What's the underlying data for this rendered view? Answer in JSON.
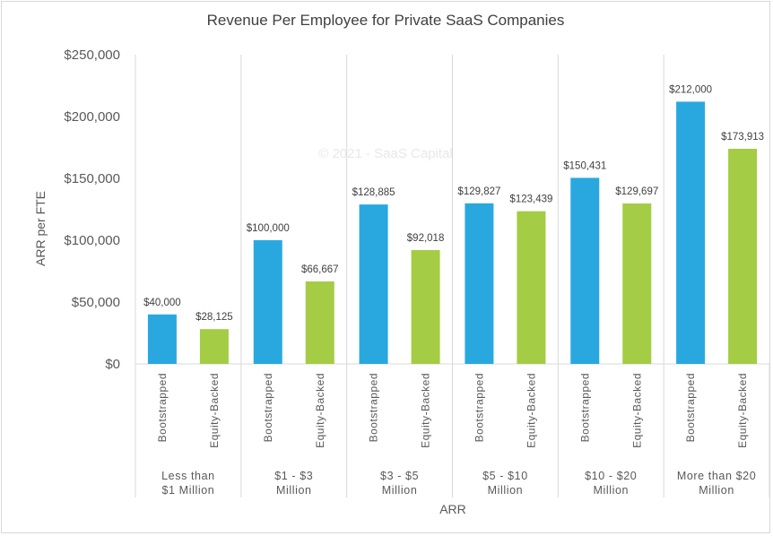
{
  "chart_data": {
    "type": "bar",
    "title": "Revenue Per Employee for Private SaaS Companies",
    "xlabel": "ARR",
    "ylabel": "ARR per FTE",
    "ylim": [
      0,
      250000
    ],
    "yticks": [
      0,
      50000,
      100000,
      150000,
      200000,
      250000
    ],
    "ytick_labels": [
      "$0",
      "$50,000",
      "$100,000",
      "$150,000",
      "$200,000",
      "$250,000"
    ],
    "watermark": "© 2021 - SaaS Capital",
    "groups": [
      {
        "label_lines": [
          "Less than",
          "$1 Million"
        ]
      },
      {
        "label_lines": [
          "$1 - $3",
          "Million"
        ]
      },
      {
        "label_lines": [
          "$3 - $5",
          "Million"
        ]
      },
      {
        "label_lines": [
          "$5 - $10",
          "Million"
        ]
      },
      {
        "label_lines": [
          "$10 - $20",
          "Million"
        ]
      },
      {
        "label_lines": [
          "More than $20",
          "Million"
        ]
      }
    ],
    "series": [
      {
        "name": "Bootstrapped",
        "color": "#29a8e0",
        "values": [
          40000,
          100000,
          128885,
          129827,
          150431,
          212000
        ],
        "labels": [
          "$40,000",
          "$100,000",
          "$128,885",
          "$129,827",
          "$150,431",
          "$212,000"
        ]
      },
      {
        "name": "Equity-Backed",
        "color": "#a4cc44",
        "values": [
          28125,
          66667,
          92018,
          123439,
          129697,
          173913
        ],
        "labels": [
          "$28,125",
          "$66,667",
          "$92,018",
          "$123,439",
          "$129,697",
          "$173,913"
        ]
      }
    ]
  }
}
